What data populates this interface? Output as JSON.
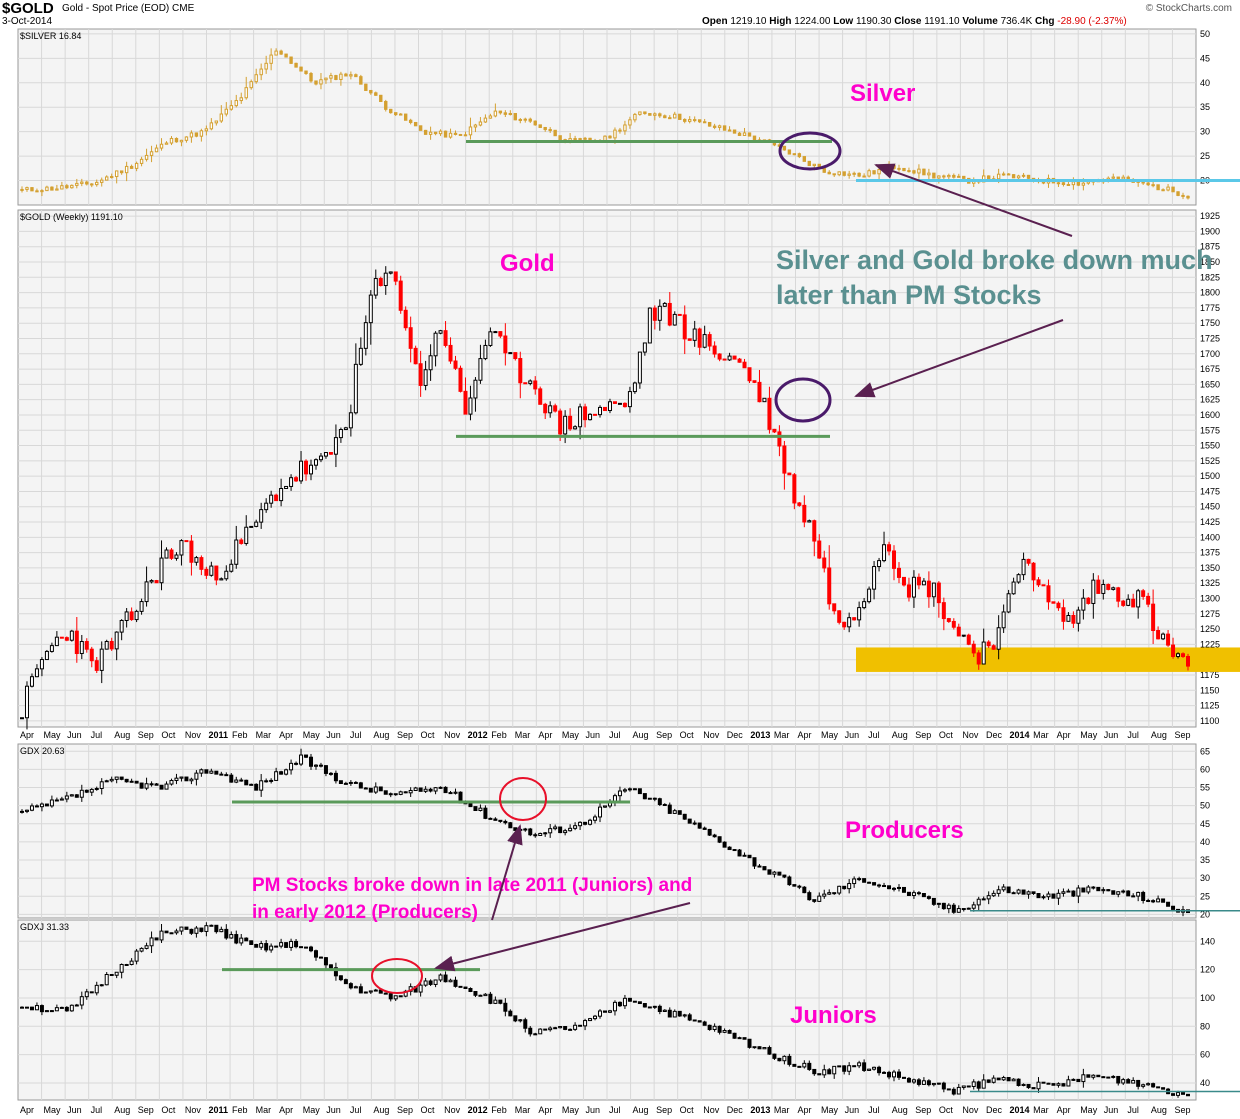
{
  "header": {
    "symbol": "$GOLD",
    "subtitle": "Gold - Spot Price (EOD)  CME",
    "date": "3-Oct-2014",
    "ohlc": {
      "open_label": "Open",
      "open": "1219.10",
      "high_label": "High",
      "high": "1224.00",
      "low_label": "Low",
      "low": "1190.30",
      "close_label": "Close",
      "close": "1191.10",
      "volume_label": "Volume",
      "volume": "736.4K",
      "chg_label": "Chg",
      "chg": "-28.90 (-2.37%)"
    },
    "brand": "© StockCharts.com"
  },
  "colors": {
    "silver": "#d4a030",
    "gold_up": "#000000",
    "gold_down": "#ff0000",
    "support_line": "#5a9a5a",
    "silver_support": "#5bc8e8",
    "gold_band": "#f0c000",
    "magenta_text": "#ff00cc",
    "teal_text": "#5a9090",
    "arrow": "#5a2050",
    "circle_purple": "#4a1a6a",
    "circle_red": "#e8102a",
    "grid": "#d8d8d8",
    "bg": "#f4f4f4"
  },
  "x_axis": {
    "months": [
      "Apr",
      "May",
      "Jun",
      "Jul",
      "Aug",
      "Sep",
      "Oct",
      "Nov",
      "2011",
      "Feb",
      "Mar",
      "Apr",
      "May",
      "Jun",
      "Jul",
      "Aug",
      "Sep",
      "Oct",
      "Nov",
      "2012",
      "Feb",
      "Mar",
      "Apr",
      "May",
      "Jun",
      "Jul",
      "Aug",
      "Sep",
      "Oct",
      "Nov",
      "Dec",
      "2013",
      "Mar",
      "Apr",
      "May",
      "Jun",
      "Jul",
      "Aug",
      "Sep",
      "Oct",
      "Nov",
      "Dec",
      "2014",
      "Mar",
      "Apr",
      "May",
      "Jun",
      "Jul",
      "Aug",
      "Sep"
    ]
  },
  "annotations": {
    "silver_label": "Silver",
    "gold_label": "Gold",
    "producers_label": "Producers",
    "juniors_label": "Juniors",
    "pm_note_line1": "Silver and Gold broke down much",
    "pm_note_line2": "later than PM Stocks",
    "stocks_note_line1": "PM Stocks broke down in late 2011 (Juniors) and",
    "stocks_note_line2": "in early 2012 (Producers)"
  },
  "chart_data": [
    {
      "type": "line",
      "legend": "$SILVER 16.84",
      "ylim": [
        15,
        51
      ],
      "y_ticks": [
        "50",
        "45",
        "40",
        "35",
        "30",
        "25",
        "20"
      ],
      "x": [
        "Apr 2010",
        "Jul 2010",
        "Oct 2010",
        "Jan 2011",
        "Mar 2011",
        "Apr 2011",
        "May 2011",
        "Jun 2011",
        "Aug 2011",
        "Sep 2011",
        "Oct 2011",
        "Nov 2011",
        "Jan 2012",
        "Feb 2012",
        "Apr 2012",
        "Jun 2012",
        "Aug 2012",
        "Oct 2012",
        "Dec 2012",
        "Feb 2013",
        "Mar 2013",
        "Apr 2013",
        "Jun 2013",
        "Aug 2013",
        "Oct 2013",
        "Dec 2013",
        "Feb 2014",
        "Apr 2014",
        "Jun 2014",
        "Jul 2014",
        "Aug 2014",
        "Sep 2014",
        "Oct 2014"
      ],
      "values": [
        18,
        18.5,
        19.5,
        23,
        28,
        30,
        37,
        47,
        40,
        42,
        35,
        30,
        29,
        34,
        32,
        28,
        28.5,
        34,
        33,
        31,
        29,
        26,
        22,
        21,
        23,
        21,
        20,
        21,
        20,
        19.5,
        20.5,
        19,
        17
      ],
      "support_levels": [
        28,
        20
      ]
    },
    {
      "type": "bar",
      "legend": "$GOLD (Weekly) 1191.10",
      "ylim": [
        1090,
        1935
      ],
      "y_ticks": [
        "1925",
        "1900",
        "1875",
        "1850",
        "1825",
        "1800",
        "1775",
        "1750",
        "1725",
        "1700",
        "1675",
        "1650",
        "1625",
        "1600",
        "1575",
        "1550",
        "1525",
        "1500",
        "1475",
        "1450",
        "1425",
        "1400",
        "1375",
        "1350",
        "1325",
        "1300",
        "1275",
        "1250",
        "1225",
        "1200",
        "1175",
        "1150",
        "1125",
        "1100"
      ],
      "x": [
        "Apr 2010",
        "May 2010",
        "Jun 2010",
        "Jul 2010",
        "Aug 2010",
        "Sep 2010",
        "Oct 2010",
        "Nov 2010",
        "Jan 2011",
        "Feb 2011",
        "Mar 2011",
        "Apr 2011",
        "May 2011",
        "Jun 2011",
        "Jul 2011",
        "Aug 2011",
        "Sep 2011",
        "Oct 2011",
        "Nov 2011",
        "Jan 2012",
        "Feb 2012",
        "Mar 2012",
        "Apr 2012",
        "May 2012",
        "Jun 2012",
        "Jul 2012",
        "Aug 2012",
        "Sep 2012",
        "Oct 2012",
        "Nov 2012",
        "Dec 2012",
        "Jan 2013",
        "Mar 2013",
        "Apr 2013",
        "May 2013",
        "Jun 2013",
        "Jul 2013",
        "Aug 2013",
        "Sep 2013",
        "Oct 2013",
        "Nov 2013",
        "Dec 2013",
        "Jan 2014",
        "Mar 2014",
        "Apr 2014",
        "May 2014",
        "Jun 2014",
        "Jul 2014",
        "Aug 2014",
        "Sep 2014",
        "Oct 2014"
      ],
      "values": [
        1120,
        1210,
        1250,
        1190,
        1230,
        1290,
        1360,
        1390,
        1330,
        1370,
        1420,
        1480,
        1510,
        1520,
        1600,
        1800,
        1830,
        1650,
        1750,
        1600,
        1740,
        1680,
        1650,
        1580,
        1600,
        1610,
        1620,
        1770,
        1760,
        1720,
        1700,
        1680,
        1600,
        1480,
        1400,
        1250,
        1300,
        1400,
        1320,
        1320,
        1250,
        1210,
        1250,
        1380,
        1290,
        1260,
        1320,
        1310,
        1300,
        1220,
        1191
      ],
      "support_levels": [
        1565
      ],
      "support_band": [
        1180,
        1220
      ]
    },
    {
      "type": "bar",
      "legend": "GDX 20.63",
      "ylim": [
        19,
        67
      ],
      "y_ticks": [
        "65",
        "60",
        "55",
        "50",
        "45",
        "40",
        "35",
        "30",
        "25",
        "20"
      ],
      "x": [
        "Apr 2010",
        "Jul 2010",
        "Oct 2010",
        "Jan 2011",
        "Apr 2011",
        "Jul 2011",
        "Sep 2011",
        "Nov 2011",
        "Jan 2012",
        "Feb 2012",
        "Apr 2012",
        "Jun 2012",
        "Aug 2012",
        "Oct 2012",
        "Dec 2012",
        "Feb 2013",
        "Apr 2013",
        "Jun 2013",
        "Aug 2013",
        "Oct 2013",
        "Dec 2013",
        "Feb 2014",
        "Apr 2014",
        "Jul 2014",
        "Sep 2014",
        "Oct 2014"
      ],
      "values": [
        48,
        52,
        57,
        55,
        60,
        55,
        63,
        56,
        53,
        55,
        47,
        42,
        45,
        55,
        48,
        40,
        32,
        24,
        30,
        26,
        21,
        27,
        25,
        27,
        25,
        20.6
      ],
      "support_levels": [
        51,
        21
      ]
    },
    {
      "type": "bar",
      "legend": "GDXJ 31.33",
      "ylim": [
        28,
        155
      ],
      "y_ticks": [
        "140",
        "120",
        "100",
        "80",
        "60",
        "40"
      ],
      "x": [
        "Apr 2010",
        "Jul 2010",
        "Oct 2010",
        "Jan 2011",
        "Apr 2011",
        "Jul 2011",
        "Sep 2011",
        "Nov 2011",
        "Jan 2012",
        "Feb 2012",
        "Apr 2012",
        "Jun 2012",
        "Aug 2012",
        "Oct 2012",
        "Dec 2012",
        "Feb 2013",
        "Apr 2013",
        "Jun 2013",
        "Aug 2013",
        "Oct 2013",
        "Dec 2013",
        "Feb 2014",
        "Apr 2014",
        "Jul 2014",
        "Sep 2014",
        "Oct 2014"
      ],
      "values": [
        95,
        90,
        120,
        145,
        150,
        135,
        138,
        108,
        100,
        115,
        100,
        75,
        80,
        100,
        88,
        76,
        62,
        48,
        52,
        42,
        35,
        43,
        37,
        45,
        40,
        31.3
      ],
      "support_levels": [
        120,
        34
      ]
    }
  ]
}
